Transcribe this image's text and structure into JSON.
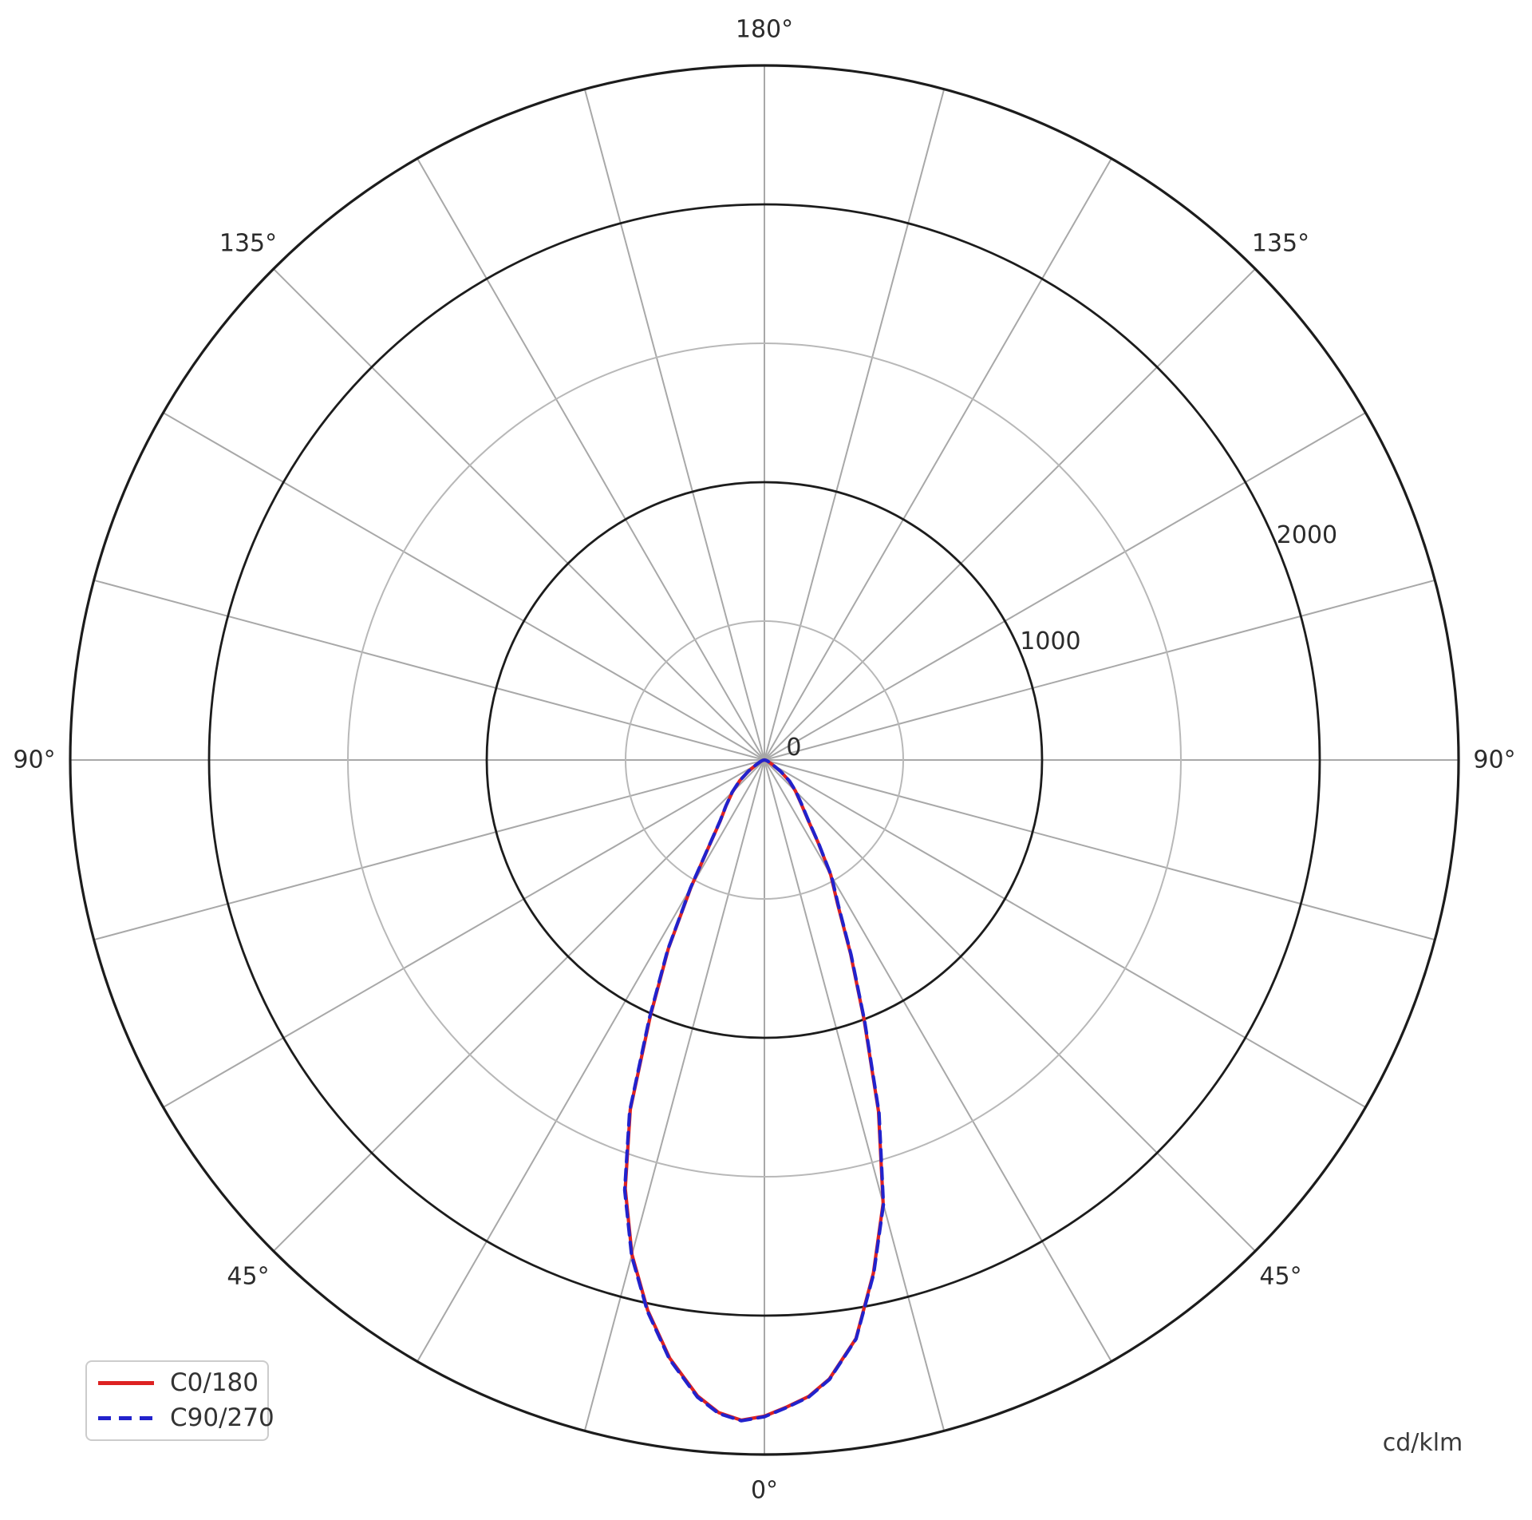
{
  "chart_data": {
    "type": "polar-line",
    "title": "",
    "description": "Luminous intensity distribution curve of a luminaire, lobe pointing toward 0° (downward)",
    "units_label": "cd/klm",
    "angle_axis": {
      "zero_position": "bottom",
      "mirrored": true,
      "grid_step_deg": 15,
      "labeled_angles_deg": [
        0,
        45,
        90,
        135,
        180
      ],
      "label_suffix": "°"
    },
    "r_axis": {
      "min": 0,
      "max": 2500,
      "step": 500,
      "ticks": [
        {
          "value": 0,
          "label": "0"
        },
        {
          "value": 1000,
          "label": "1000"
        },
        {
          "value": 2000,
          "label": "2000"
        }
      ],
      "label_angle_above_horizontal_deg": 22.5
    },
    "grid": {
      "minor_ring_color": "#b8b8b8",
      "major_ring_color": "#1c1c1c",
      "spoke_color": "#a8a8a8"
    },
    "series": [
      {
        "name": "C0/180",
        "color": "#dd2222",
        "line_style": "solid",
        "points": [
          [
            -90,
            0
          ],
          [
            -80,
            4
          ],
          [
            -70,
            12
          ],
          [
            -60,
            35
          ],
          [
            -55,
            68
          ],
          [
            -50,
            115
          ],
          [
            -45,
            163
          ],
          [
            -40,
            214
          ],
          [
            -36,
            270
          ],
          [
            -33,
            358
          ],
          [
            -30,
            528
          ],
          [
            -27,
            762
          ],
          [
            -24,
            1012
          ],
          [
            -21,
            1348
          ],
          [
            -18,
            1622
          ],
          [
            -15,
            1843
          ],
          [
            -12,
            2024
          ],
          [
            -9,
            2180
          ],
          [
            -6,
            2302
          ],
          [
            -4,
            2355
          ],
          [
            -2,
            2378
          ],
          [
            0,
            2362
          ],
          [
            2,
            2330
          ],
          [
            4,
            2296
          ],
          [
            6,
            2240
          ],
          [
            9,
            2108
          ],
          [
            12,
            1888
          ],
          [
            15,
            1652
          ],
          [
            18,
            1330
          ],
          [
            21,
            1002
          ],
          [
            24,
            762
          ],
          [
            27,
            580
          ],
          [
            30,
            478
          ],
          [
            33,
            356
          ],
          [
            36,
            268
          ],
          [
            40,
            206
          ],
          [
            45,
            158
          ],
          [
            50,
            116
          ],
          [
            55,
            70
          ],
          [
            60,
            35
          ],
          [
            70,
            12
          ],
          [
            80,
            4
          ],
          [
            90,
            0
          ]
        ]
      },
      {
        "name": "C90/270",
        "color": "#2222cc",
        "line_style": "dashed",
        "points": [
          [
            -90,
            0
          ],
          [
            -80,
            5
          ],
          [
            -70,
            13
          ],
          [
            -60,
            36
          ],
          [
            -55,
            70
          ],
          [
            -50,
            117
          ],
          [
            -45,
            165
          ],
          [
            -40,
            216
          ],
          [
            -36,
            273
          ],
          [
            -33,
            362
          ],
          [
            -30,
            534
          ],
          [
            -27,
            768
          ],
          [
            -24,
            1020
          ],
          [
            -21,
            1354
          ],
          [
            -18,
            1628
          ],
          [
            -15,
            1848
          ],
          [
            -12,
            2028
          ],
          [
            -9,
            2184
          ],
          [
            -6,
            2306
          ],
          [
            -4,
            2358
          ],
          [
            -2,
            2380
          ],
          [
            0,
            2364
          ],
          [
            2,
            2332
          ],
          [
            4,
            2298
          ],
          [
            6,
            2242
          ],
          [
            9,
            2110
          ],
          [
            12,
            1892
          ],
          [
            15,
            1656
          ],
          [
            18,
            1336
          ],
          [
            21,
            1008
          ],
          [
            24,
            768
          ],
          [
            27,
            586
          ],
          [
            30,
            484
          ],
          [
            33,
            360
          ],
          [
            36,
            272
          ],
          [
            40,
            209
          ],
          [
            45,
            161
          ],
          [
            50,
            118
          ],
          [
            55,
            72
          ],
          [
            60,
            36
          ],
          [
            70,
            13
          ],
          [
            80,
            5
          ],
          [
            90,
            0
          ]
        ]
      }
    ]
  },
  "legend": {
    "items": [
      {
        "label": "C0/180"
      },
      {
        "label": "C90/270"
      }
    ]
  }
}
